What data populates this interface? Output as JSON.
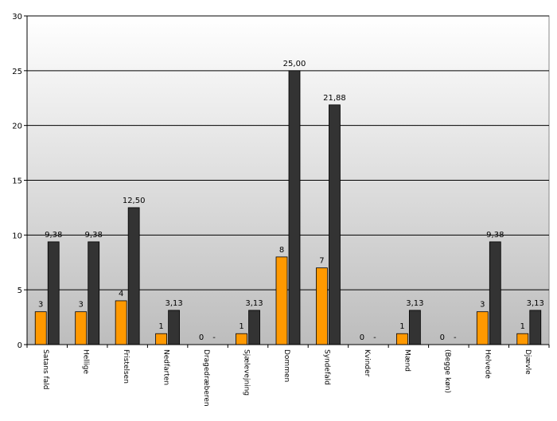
{
  "chart_data": {
    "type": "bar",
    "categories": [
      "Satans fald",
      "Hellige",
      "Fristelsen",
      "Nedfarten",
      "Dragedræberen",
      "Sjælevejning",
      "Dommen",
      "Syndefald",
      "Kvinder",
      "Mænd",
      "(Begge køn)",
      "Helvede",
      "Djævle"
    ],
    "series": [
      {
        "color": "#ff9900",
        "values": [
          3,
          3,
          4,
          1,
          0,
          1,
          8,
          7,
          0,
          1,
          0,
          3,
          1
        ],
        "labels": [
          "3",
          "3",
          "4",
          "1",
          "0",
          "1",
          "8",
          "7",
          "0",
          "1",
          "0",
          "3",
          "1"
        ]
      },
      {
        "color": "#333333",
        "values": [
          9.38,
          9.38,
          12.5,
          3.13,
          null,
          3.13,
          25.0,
          21.88,
          null,
          3.13,
          null,
          9.38,
          3.13
        ],
        "labels": [
          "9,38",
          "9,38",
          "12,50",
          "3,13",
          "-",
          "3,13",
          "25,00",
          "21,88",
          "-",
          "3,13",
          "-",
          "9,38",
          "3,13"
        ]
      }
    ],
    "yticks": [
      "0",
      "5",
      "10",
      "15",
      "20",
      "25",
      "30"
    ],
    "ylim": [
      0,
      30
    ],
    "grid": true,
    "legend": "none",
    "title": "",
    "xlabel": "",
    "ylabel": ""
  }
}
